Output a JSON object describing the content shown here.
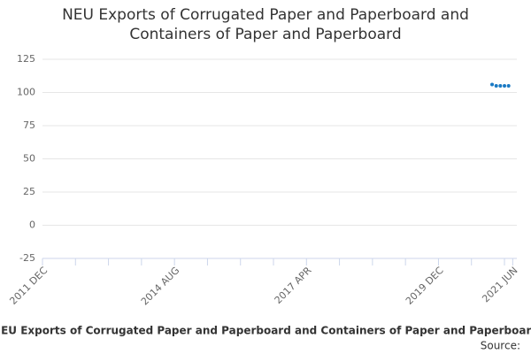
{
  "chart_data": {
    "type": "scatter",
    "title": "NEU Exports of Corrugated Paper and Paperboard and Containers of Paper and Paperboard",
    "subtitle": "NEU Exports of Corrugated Paper and Paperboard and Containers of Paper and Paperboard",
    "source": "Source:",
    "x": [
      "2021-01",
      "2021-02",
      "2021-03",
      "2021-04",
      "2021-05"
    ],
    "values": [
      106,
      105,
      105,
      105,
      105
    ],
    "color": "#1a7ac4",
    "xlim": [
      "2011-12",
      "2021-07"
    ],
    "xticks": [
      {
        "value": "2011-12",
        "label": "2011 DEC"
      },
      {
        "value": "2014-08",
        "label": "2014 AUG"
      },
      {
        "value": "2017-04",
        "label": "2017 APR"
      },
      {
        "value": "2019-12",
        "label": "2019 DEC"
      },
      {
        "value": "2021-06",
        "label": "2021 JUN"
      }
    ],
    "xminorticks": [
      "2012-08",
      "2013-04",
      "2013-12",
      "2015-04",
      "2015-12",
      "2016-08",
      "2017-12",
      "2018-08",
      "2019-04",
      "2020-08",
      "2021-04"
    ],
    "ylim": [
      -25,
      125
    ],
    "yticks": [
      -25,
      0,
      25,
      50,
      75,
      100,
      125
    ],
    "grid": true
  }
}
